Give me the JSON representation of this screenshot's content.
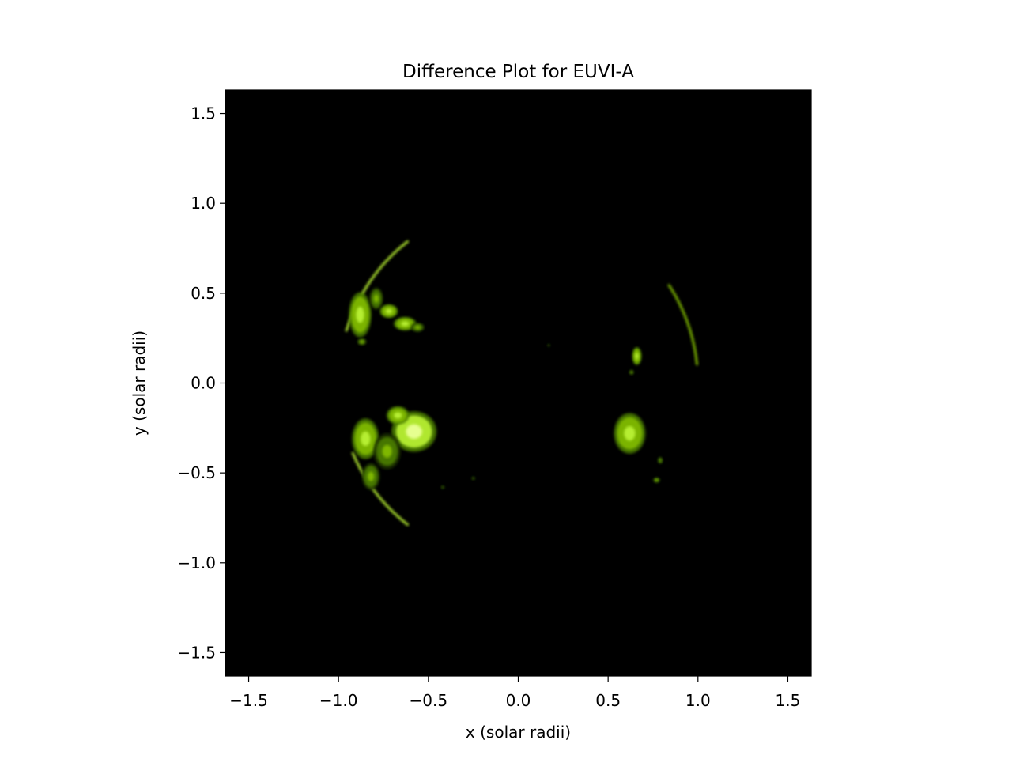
{
  "chart_data": {
    "type": "heatmap",
    "title": "Difference Plot for EUVI-A",
    "xlabel": "x (solar radii)",
    "ylabel": "y (solar radii)",
    "xlim": [
      -1.63,
      1.63
    ],
    "ylim": [
      -1.63,
      1.63
    ],
    "xticks": [
      -1.5,
      -1.0,
      -0.5,
      0.0,
      0.5,
      1.0,
      1.5
    ],
    "yticks": [
      -1.5,
      -1.0,
      -0.5,
      0.0,
      0.5,
      1.0,
      1.5
    ],
    "xtick_labels": [
      "−1.5",
      "−1.0",
      "−0.5",
      "0.0",
      "0.5",
      "1.0",
      "1.5"
    ],
    "ytick_labels": [
      "−1.5",
      "−1.0",
      "−0.5",
      "0.0",
      "0.5",
      "1.0",
      "1.5"
    ],
    "background_color": "#000000",
    "colormap": [
      "#000000",
      "#1f3300",
      "#4a7a00",
      "#7fb800",
      "#b6ee30",
      "#e6ff90"
    ],
    "grid": false,
    "features": [
      {
        "name": "east-limb-arc-north",
        "type": "arc",
        "r": 1.0,
        "start_deg": 128,
        "end_deg": 163,
        "intensity": 0.8
      },
      {
        "name": "east-limb-arc-south",
        "type": "arc",
        "r": 1.0,
        "start_deg": 203,
        "end_deg": 232,
        "intensity": 0.7
      },
      {
        "name": "west-limb-arc",
        "type": "arc",
        "r": 1.0,
        "start_deg": 6,
        "end_deg": 33,
        "intensity": 0.65
      },
      {
        "name": "ne-region-a",
        "type": "blob",
        "x": -0.88,
        "y": 0.38,
        "rx": 0.05,
        "ry": 0.1,
        "intensity": 0.75
      },
      {
        "name": "ne-region-b",
        "type": "blob",
        "x": -0.79,
        "y": 0.47,
        "rx": 0.03,
        "ry": 0.05,
        "intensity": 0.6
      },
      {
        "name": "ne-region-c",
        "type": "blob",
        "x": -0.72,
        "y": 0.4,
        "rx": 0.04,
        "ry": 0.03,
        "intensity": 0.75
      },
      {
        "name": "ne-region-d",
        "type": "blob",
        "x": -0.63,
        "y": 0.33,
        "rx": 0.05,
        "ry": 0.03,
        "intensity": 0.8
      },
      {
        "name": "ne-region-e",
        "type": "blob",
        "x": -0.56,
        "y": 0.31,
        "rx": 0.03,
        "ry": 0.02,
        "intensity": 0.6
      },
      {
        "name": "ne-region-f",
        "type": "blob",
        "x": -0.87,
        "y": 0.23,
        "rx": 0.02,
        "ry": 0.015,
        "intensity": 0.55
      },
      {
        "name": "se-region-main",
        "type": "blob",
        "x": -0.58,
        "y": -0.27,
        "rx": 0.1,
        "ry": 0.09,
        "intensity": 0.9
      },
      {
        "name": "se-region-b",
        "type": "blob",
        "x": -0.67,
        "y": -0.18,
        "rx": 0.05,
        "ry": 0.04,
        "intensity": 0.7
      },
      {
        "name": "se-region-c",
        "type": "blob",
        "x": -0.85,
        "y": -0.31,
        "rx": 0.06,
        "ry": 0.09,
        "intensity": 0.85
      },
      {
        "name": "se-region-d",
        "type": "blob",
        "x": -0.73,
        "y": -0.38,
        "rx": 0.06,
        "ry": 0.08,
        "intensity": 0.6
      },
      {
        "name": "se-region-e",
        "type": "blob",
        "x": -0.82,
        "y": -0.52,
        "rx": 0.04,
        "ry": 0.06,
        "intensity": 0.5
      },
      {
        "name": "west-region-main",
        "type": "blob",
        "x": 0.62,
        "y": -0.28,
        "rx": 0.07,
        "ry": 0.09,
        "intensity": 0.85
      },
      {
        "name": "west-region-small",
        "type": "blob",
        "x": 0.66,
        "y": 0.15,
        "rx": 0.02,
        "ry": 0.04,
        "intensity": 0.7
      },
      {
        "name": "west-speck-a",
        "type": "blob",
        "x": 0.77,
        "y": -0.54,
        "rx": 0.015,
        "ry": 0.012,
        "intensity": 0.5
      },
      {
        "name": "west-speck-b",
        "type": "blob",
        "x": 0.79,
        "y": -0.43,
        "rx": 0.01,
        "ry": 0.015,
        "intensity": 0.45
      },
      {
        "name": "west-speck-c",
        "type": "blob",
        "x": 0.63,
        "y": 0.06,
        "rx": 0.01,
        "ry": 0.01,
        "intensity": 0.45
      },
      {
        "name": "center-speck-a",
        "type": "blob",
        "x": -0.25,
        "y": -0.53,
        "rx": 0.008,
        "ry": 0.008,
        "intensity": 0.35
      },
      {
        "name": "center-speck-b",
        "type": "blob",
        "x": -0.42,
        "y": -0.58,
        "rx": 0.008,
        "ry": 0.008,
        "intensity": 0.3
      },
      {
        "name": "center-speck-c",
        "type": "blob",
        "x": 0.17,
        "y": 0.21,
        "rx": 0.006,
        "ry": 0.006,
        "intensity": 0.3
      }
    ]
  }
}
